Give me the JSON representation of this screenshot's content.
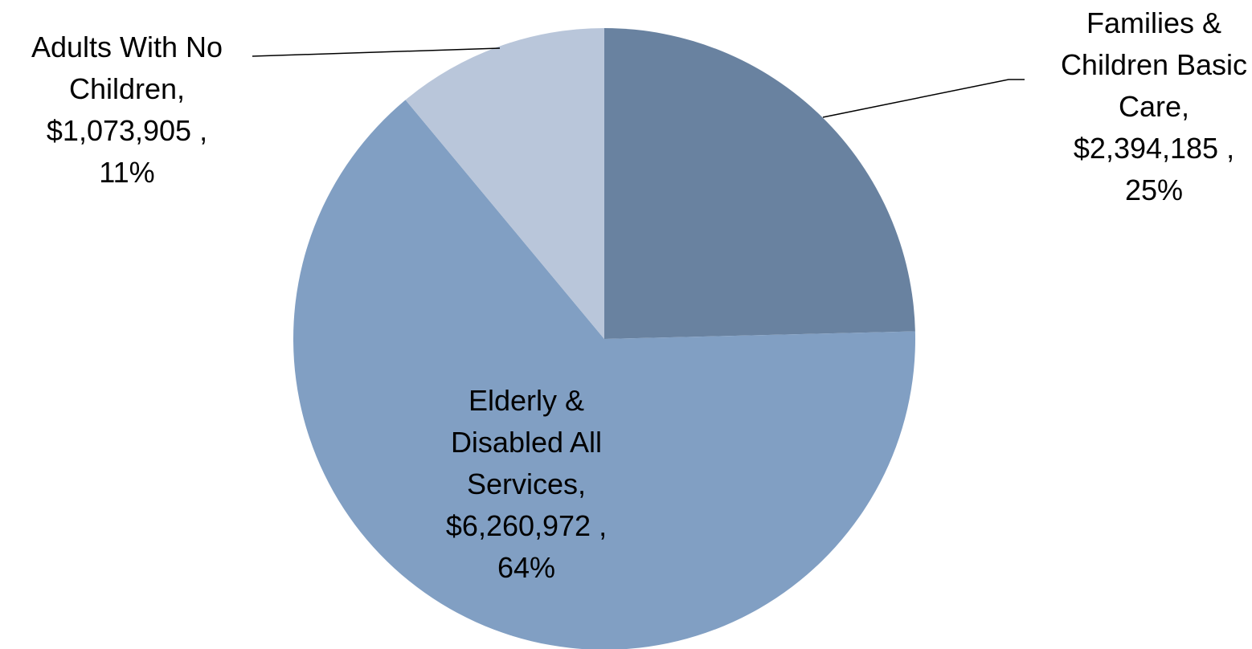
{
  "chart_data": {
    "type": "pie",
    "title": "",
    "start_angle_deg": 0,
    "direction": "clockwise",
    "slices": [
      {
        "name": "Families & Children Basic Care",
        "value": 2394185,
        "percent": 25,
        "color": "#6982a0",
        "label_lines": [
          "Families &",
          "Children Basic",
          "Care,",
          "$2,394,185 ,",
          "25%"
        ]
      },
      {
        "name": "Elderly & Disabled All Services",
        "value": 6260972,
        "percent": 64,
        "color": "#819fc3",
        "label_lines": [
          "Elderly &",
          "Disabled All",
          "Services,",
          "$6,260,972 ,",
          "64%"
        ]
      },
      {
        "name": "Adults With No Children",
        "value": 1073905,
        "percent": 11,
        "color": "#b9c6da",
        "label_lines": [
          "Adults With No",
          "Children,",
          "$1,073,905 ,",
          "11%"
        ]
      }
    ]
  }
}
